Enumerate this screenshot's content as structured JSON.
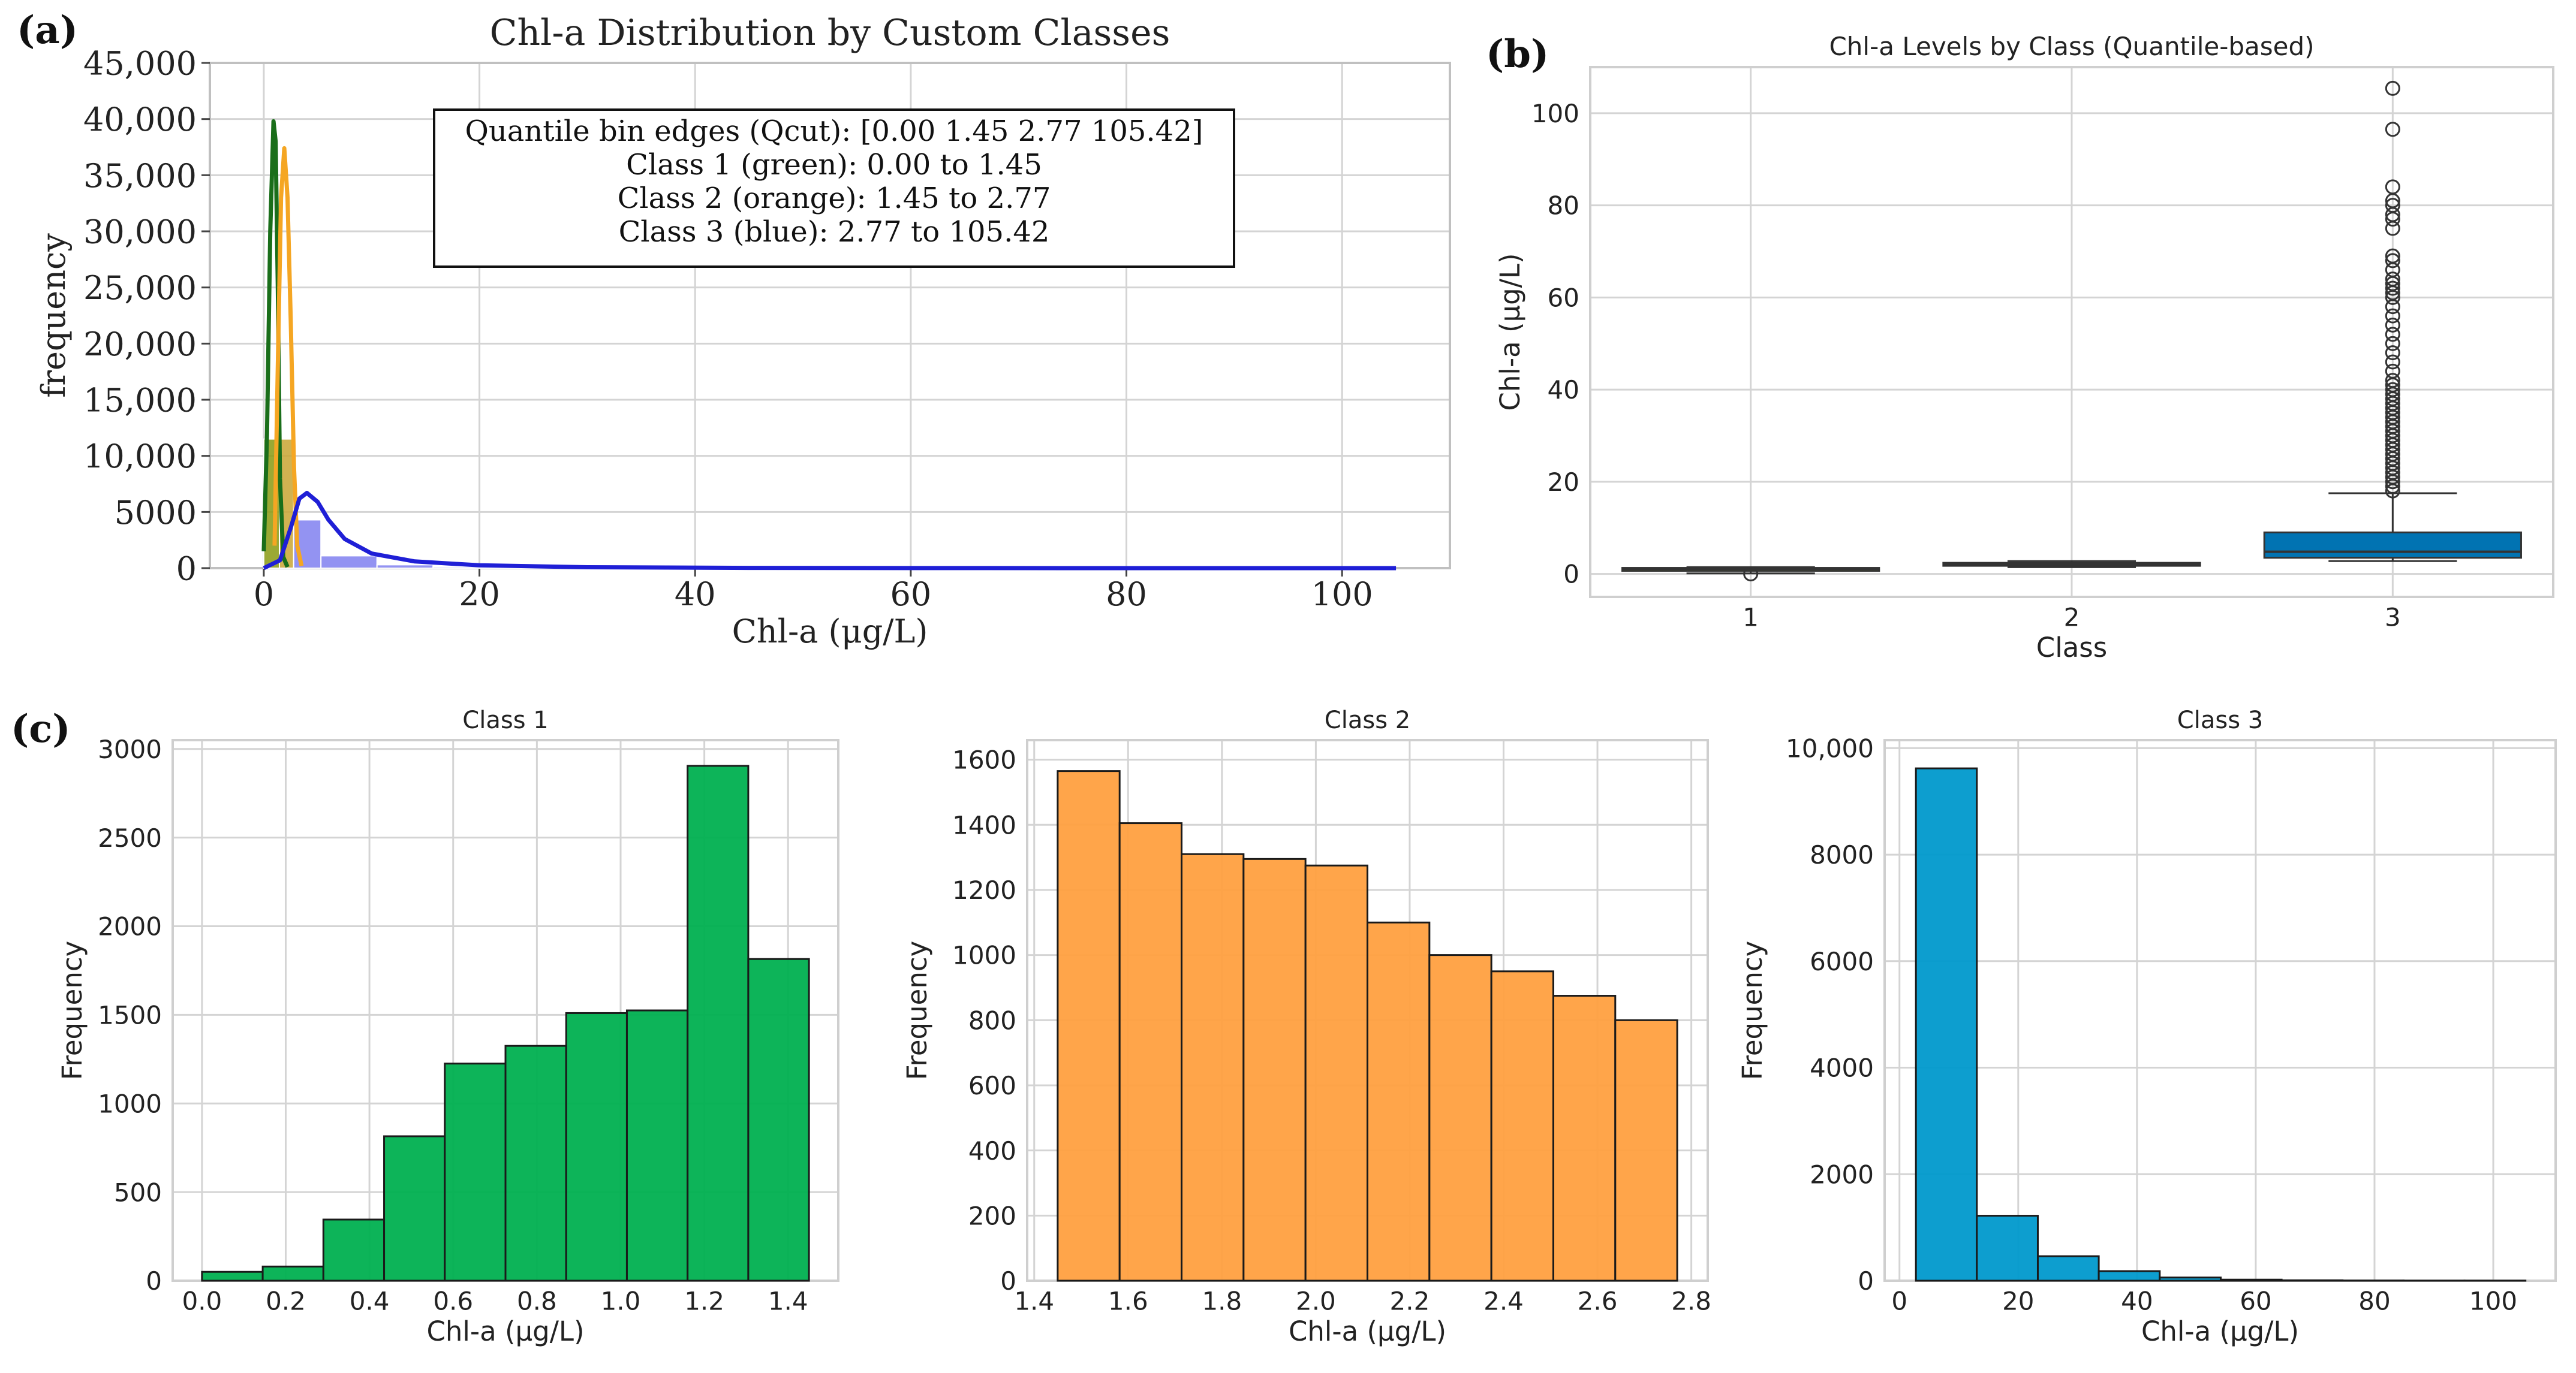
{
  "figure": {
    "panel_labels": [
      "(a)",
      "(b)",
      "(c)"
    ]
  },
  "chart_data": [
    {
      "id": "a",
      "type": "histogram",
      "title": "Chl-a Distribution by Custom Classes",
      "xlabel": "Chl-a (μg/L)",
      "ylabel": "frequency",
      "xlim": [
        -5,
        110
      ],
      "ylim": [
        0,
        45000
      ],
      "xticks": [
        "0",
        "20",
        "40",
        "60",
        "80",
        "100"
      ],
      "xtick_values": [
        0,
        20,
        40,
        60,
        80,
        100
      ],
      "yticks": [
        "0",
        "5000",
        "10,000",
        "15,000",
        "20,000",
        "25,000",
        "30,000",
        "35,000",
        "40,000",
        "45,000"
      ],
      "ytick_values": [
        0,
        5000,
        10000,
        15000,
        20000,
        25000,
        30000,
        35000,
        40000,
        45000
      ],
      "grid": true,
      "annotation": [
        "Quantile bin edges (Qcut): [0.00 1.45 2.77 105.42]",
        "Class 1 (green): 0.00 to 1.45",
        "Class 2 (orange): 1.45 to 2.77",
        "Class 3 (blue): 2.77 to 105.42"
      ],
      "series": [
        {
          "color": "#8a9a10",
          "bins": [
            [
              0.0,
              1.45,
              11500
            ]
          ]
        },
        {
          "color": "#c9a432",
          "bins": [
            [
              1.45,
              2.77,
              11500
            ]
          ]
        },
        {
          "color": "#8080f0",
          "bins": [
            [
              2.77,
              5.3,
              4300
            ],
            [
              5.3,
              10.5,
              1100
            ],
            [
              10.5,
              15.7,
              300
            ],
            [
              15.7,
              21,
              120
            ],
            [
              21,
              26,
              60
            ],
            [
              26,
              31,
              25
            ],
            [
              31,
              42,
              10
            ]
          ]
        }
      ],
      "kde": [
        {
          "color": "#1a6e1a",
          "points": [
            [
              0.0,
              1500
            ],
            [
              0.3,
              12000
            ],
            [
              0.6,
              30000
            ],
            [
              0.9,
              39800
            ],
            [
              1.1,
              38000
            ],
            [
              1.3,
              25000
            ],
            [
              1.5,
              8000
            ],
            [
              1.8,
              1000
            ],
            [
              2.2,
              100
            ]
          ]
        },
        {
          "color": "#f5a623",
          "points": [
            [
              1.0,
              2000
            ],
            [
              1.3,
              18000
            ],
            [
              1.6,
              33000
            ],
            [
              1.9,
              37400
            ],
            [
              2.2,
              33000
            ],
            [
              2.5,
              22000
            ],
            [
              2.8,
              9000
            ],
            [
              3.1,
              2000
            ],
            [
              3.5,
              200
            ]
          ]
        },
        {
          "color": "#1f1fd6",
          "points": [
            [
              0.0,
              0
            ],
            [
              1.5,
              700
            ],
            [
              2.5,
              3600
            ],
            [
              3.3,
              6200
            ],
            [
              4.0,
              6700
            ],
            [
              5.0,
              5900
            ],
            [
              6.0,
              4300
            ],
            [
              7.5,
              2600
            ],
            [
              10,
              1300
            ],
            [
              14,
              600
            ],
            [
              20,
              250
            ],
            [
              30,
              80
            ],
            [
              45,
              20
            ],
            [
              60,
              5
            ],
            [
              80,
              0
            ],
            [
              105,
              0
            ]
          ]
        }
      ]
    },
    {
      "id": "b",
      "type": "box",
      "title": "Chl-a Levels by Class (Quantile-based)",
      "xlabel": "Class",
      "ylabel": "Chl-a (μg/L)",
      "categories": [
        "1",
        "2",
        "3"
      ],
      "ylim": [
        -5,
        110
      ],
      "yticks": [
        "0",
        "20",
        "40",
        "60",
        "80",
        "100"
      ],
      "ytick_values": [
        0,
        20,
        40,
        60,
        80,
        100
      ],
      "grid": true,
      "boxes": [
        {
          "class": "1",
          "color": "#9dc41a",
          "whislo": 0.1,
          "q1": 0.75,
          "med": 1.1,
          "q3": 1.3,
          "whishi": 1.45,
          "fliers": [
            0.0
          ]
        },
        {
          "class": "2",
          "color": "#f5a623",
          "whislo": 1.45,
          "q1": 1.75,
          "med": 2.05,
          "q3": 2.4,
          "whishi": 2.77,
          "fliers": []
        },
        {
          "class": "3",
          "color": "#0173b2",
          "whislo": 2.77,
          "q1": 3.5,
          "med": 4.8,
          "q3": 9.0,
          "whishi": 17.5,
          "fliers": [
            18,
            19,
            20,
            21,
            22,
            23,
            24,
            25,
            26,
            27,
            28,
            29,
            30,
            31,
            32,
            33,
            34,
            35,
            36,
            37,
            38,
            39,
            40,
            41,
            42,
            44,
            46,
            48,
            50,
            52,
            54,
            56,
            58,
            60,
            61,
            62,
            63,
            64,
            66,
            68,
            69,
            75,
            77,
            78,
            80,
            81,
            84,
            96.5,
            105.4
          ]
        }
      ]
    },
    {
      "id": "c1",
      "type": "histogram",
      "title": "Class 1",
      "xlabel": "Chl-a (μg/L)",
      "ylabel": "Frequency",
      "color": "#00b050",
      "xlim": [
        -0.07,
        1.52
      ],
      "ylim": [
        0,
        3050
      ],
      "xticks": [
        "0.0",
        "0.2",
        "0.4",
        "0.6",
        "0.8",
        "1.0",
        "1.2",
        "1.4"
      ],
      "xtick_values": [
        0.0,
        0.2,
        0.4,
        0.6,
        0.8,
        1.0,
        1.2,
        1.4
      ],
      "yticks": [
        "0",
        "500",
        "1000",
        "1500",
        "2000",
        "2500",
        "3000"
      ],
      "ytick_values": [
        0,
        500,
        1000,
        1500,
        2000,
        2500,
        3000
      ],
      "grid": true,
      "bin_edges": [
        0.0,
        0.145,
        0.29,
        0.435,
        0.58,
        0.725,
        0.87,
        1.015,
        1.16,
        1.305,
        1.45
      ],
      "values": [
        50,
        80,
        345,
        815,
        1225,
        1325,
        1510,
        1525,
        2905,
        1815
      ]
    },
    {
      "id": "c2",
      "type": "histogram",
      "title": "Class 2",
      "xlabel": "Chl-a (μg/L)",
      "ylabel": "Frequency",
      "color": "#ffa040",
      "xlim": [
        1.385,
        2.835
      ],
      "ylim": [
        0,
        1660
      ],
      "xticks": [
        "1.4",
        "1.6",
        "1.8",
        "2.0",
        "2.2",
        "2.4",
        "2.6",
        "2.8"
      ],
      "xtick_values": [
        1.4,
        1.6,
        1.8,
        2.0,
        2.2,
        2.4,
        2.6,
        2.8
      ],
      "yticks": [
        "0",
        "200",
        "400",
        "600",
        "800",
        "1000",
        "1200",
        "1400",
        "1600"
      ],
      "ytick_values": [
        0,
        200,
        400,
        600,
        800,
        1000,
        1200,
        1400,
        1600
      ],
      "grid": true,
      "bin_edges": [
        1.45,
        1.582,
        1.714,
        1.846,
        1.978,
        2.11,
        2.242,
        2.374,
        2.506,
        2.638,
        2.77
      ],
      "values": [
        1565,
        1405,
        1310,
        1295,
        1275,
        1100,
        1000,
        950,
        875,
        800
      ]
    },
    {
      "id": "c3",
      "type": "histogram",
      "title": "Class 3",
      "xlabel": "Chl-a (μg/L)",
      "ylabel": "Frequency",
      "color": "#0099cc",
      "xlim": [
        -2.5,
        110.5
      ],
      "ylim": [
        0,
        10150
      ],
      "xticks": [
        "0",
        "20",
        "40",
        "60",
        "80",
        "100"
      ],
      "xtick_values": [
        0,
        20,
        40,
        60,
        80,
        100
      ],
      "yticks": [
        "0",
        "2000",
        "4000",
        "6000",
        "8000",
        "10,000"
      ],
      "ytick_values": [
        0,
        2000,
        4000,
        6000,
        8000,
        10000
      ],
      "grid": true,
      "bin_edges": [
        2.77,
        13.03,
        23.3,
        33.56,
        43.83,
        54.1,
        64.36,
        74.62,
        84.89,
        95.15,
        105.42
      ],
      "values": [
        9620,
        1220,
        460,
        180,
        60,
        20,
        8,
        4,
        2,
        2
      ]
    }
  ]
}
